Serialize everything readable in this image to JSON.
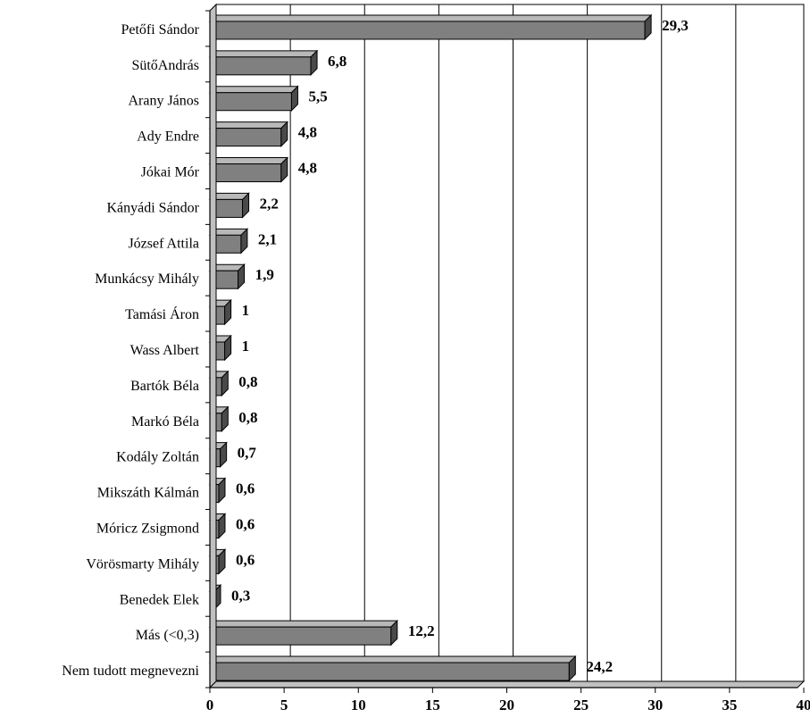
{
  "chart_data": {
    "type": "bar",
    "orientation": "horizontal",
    "categories": [
      "Petőfi Sándor",
      "SütőAndrás",
      "Arany János",
      "Ady Endre",
      "Jókai Mór",
      "Kányádi Sándor",
      "József Attila",
      "Munkácsy Mihály",
      "Tamási Áron",
      "Wass Albert",
      "Bartók Béla",
      "Markó Béla",
      "Kodály Zoltán",
      "Mikszáth Kálmán",
      "Móricz Zsigmond",
      "Vörösmarty Mihály",
      "Benedek Elek",
      "Más (<0,3)",
      "Nem tudott megnevezni"
    ],
    "values": [
      29.3,
      6.8,
      5.5,
      4.8,
      4.8,
      2.2,
      2.1,
      1.9,
      1,
      1,
      0.8,
      0.8,
      0.7,
      0.6,
      0.6,
      0.6,
      0.3,
      12.2,
      24.2
    ],
    "value_labels": [
      "29,3",
      "6,8",
      "5,5",
      "4,8",
      "4,8",
      "2,2",
      "2,1",
      "1,9",
      "1",
      "1",
      "0,8",
      "0,8",
      "0,7",
      "0,6",
      "0,6",
      "0,6",
      "0,3",
      "12,2",
      "24,2"
    ],
    "x_ticks": [
      "0",
      "5",
      "10",
      "15",
      "20",
      "25",
      "30",
      "35",
      "40"
    ],
    "xlim": [
      0,
      40
    ],
    "grid": true,
    "legend": "none",
    "bar_color": "#808080",
    "bar_side_color": "#4a4a4a",
    "bar_top_color": "#b8b8b8",
    "title": "",
    "xlabel": "",
    "ylabel": ""
  }
}
